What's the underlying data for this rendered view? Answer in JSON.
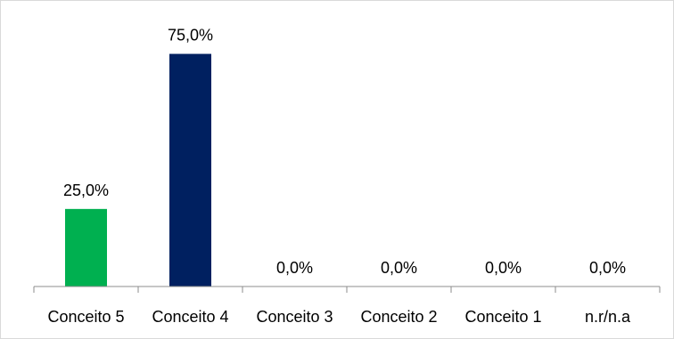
{
  "chart_data": {
    "type": "bar",
    "title": "",
    "xlabel": "",
    "ylabel": "",
    "ylim": [
      0,
      80
    ],
    "grid": false,
    "legend": "none",
    "categories": [
      "Conceito 5",
      "Conceito 4",
      "Conceito 3",
      "Conceito 2",
      "Conceito 1",
      "n.r/n.a"
    ],
    "values": [
      25.0,
      75.0,
      0.0,
      0.0,
      0.0,
      0.0
    ],
    "data_labels": [
      "25,0%",
      "75,0%",
      "0,0%",
      "0,0%",
      "0,0%",
      "0,0%"
    ],
    "colors": [
      "#00b050",
      "#002060",
      "#002060",
      "#002060",
      "#002060",
      "#002060"
    ]
  }
}
